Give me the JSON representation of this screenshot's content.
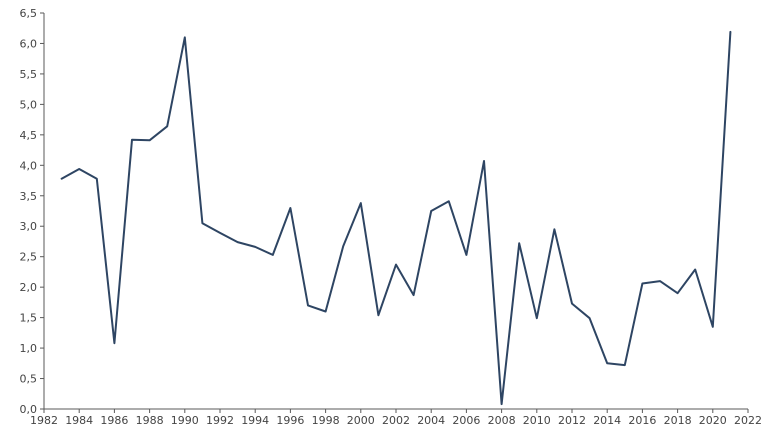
{
  "chart_data": {
    "type": "line",
    "title": "",
    "xlabel": "",
    "ylabel": "",
    "xlim": [
      1982,
      2022
    ],
    "ylim": [
      0,
      6.5
    ],
    "x_ticks": [
      1982,
      1984,
      1986,
      1988,
      1990,
      1992,
      1994,
      1996,
      1998,
      2000,
      2002,
      2004,
      2006,
      2008,
      2010,
      2012,
      2014,
      2016,
      2018,
      2020,
      2022
    ],
    "x_tick_labels": [
      "1982",
      "1984",
      "1986",
      "1988",
      "1990",
      "1992",
      "1994",
      "1996",
      "1998",
      "2000",
      "2002",
      "2004",
      "2006",
      "2008",
      "2010",
      "2012",
      "2014",
      "2016",
      "2018",
      "2020",
      "2022"
    ],
    "y_ticks": [
      0,
      0.5,
      1,
      1.5,
      2,
      2.5,
      3,
      3.5,
      4,
      4.5,
      5,
      5.5,
      6,
      6.5
    ],
    "y_tick_labels": [
      "0,0",
      "0,5",
      "1,0",
      "1,5",
      "2,0",
      "2,5",
      "3,0",
      "3,5",
      "4,0",
      "4,5",
      "5,0",
      "5,5",
      "6,0",
      "6,5"
    ],
    "grid": false,
    "legend": "none",
    "series": [
      {
        "color": "#2e4563",
        "x": [
          1983,
          1984,
          1985,
          1986,
          1987,
          1988,
          1989,
          1990,
          1991,
          1992,
          1993,
          1994,
          1995,
          1996,
          1997,
          1998,
          1999,
          2000,
          2001,
          2002,
          2003,
          2004,
          2005,
          2006,
          2007,
          2008,
          2009,
          2010,
          2011,
          2012,
          2013,
          2014,
          2015,
          2016,
          2017,
          2018,
          2019,
          2020,
          2021
        ],
        "values": [
          3.78,
          3.94,
          3.78,
          1.08,
          4.42,
          4.41,
          4.64,
          6.1,
          3.05,
          2.89,
          2.74,
          2.66,
          2.53,
          3.3,
          1.7,
          1.6,
          2.67,
          3.38,
          1.54,
          2.37,
          1.87,
          3.25,
          3.41,
          2.53,
          4.07,
          0.08,
          2.72,
          1.49,
          2.95,
          1.73,
          1.49,
          0.75,
          0.72,
          2.06,
          2.1,
          1.9,
          2.29,
          1.35,
          6.19
        ]
      }
    ]
  }
}
